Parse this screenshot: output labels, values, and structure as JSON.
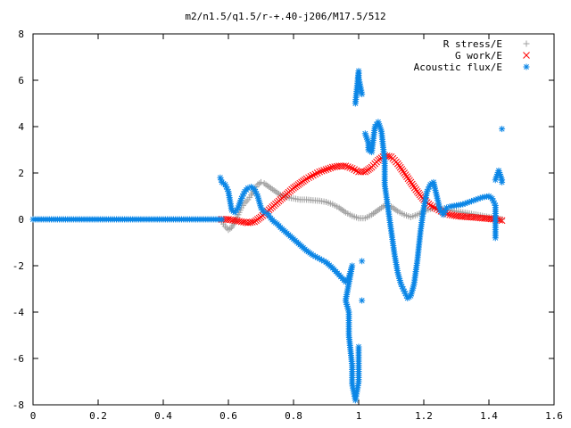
{
  "chart_data": {
    "type": "scatter",
    "title": "m2/n1.5/q1.5/r-+.40-j206/M17.5/512",
    "xlabel": "",
    "ylabel": "",
    "xlim": [
      0,
      1.6
    ],
    "ylim": [
      -8,
      8
    ],
    "xticks": [
      "0",
      "0.2",
      "0.4",
      "0.6",
      "0.8",
      "1",
      "1.2",
      "1.4",
      "1.6"
    ],
    "yticks": [
      "-8",
      "-6",
      "-4",
      "-2",
      "0",
      "2",
      "4",
      "6",
      "8"
    ],
    "grid": false,
    "legend_position": "top-right",
    "series": [
      {
        "name": "R stress/E",
        "marker": "plus",
        "color": "#a0a0a0",
        "points": [
          [
            0.58,
            -0.1
          ],
          [
            0.59,
            -0.3
          ],
          [
            0.6,
            -0.45
          ],
          [
            0.61,
            -0.35
          ],
          [
            0.62,
            -0.1
          ],
          [
            0.63,
            0.2
          ],
          [
            0.64,
            0.5
          ],
          [
            0.65,
            0.7
          ],
          [
            0.66,
            0.85
          ],
          [
            0.67,
            1.05
          ],
          [
            0.68,
            1.3
          ],
          [
            0.69,
            1.5
          ],
          [
            0.7,
            1.6
          ],
          [
            0.71,
            1.55
          ],
          [
            0.72,
            1.45
          ],
          [
            0.73,
            1.35
          ],
          [
            0.74,
            1.25
          ],
          [
            0.75,
            1.15
          ],
          [
            0.76,
            1.05
          ],
          [
            0.78,
            0.95
          ],
          [
            0.8,
            0.9
          ],
          [
            0.82,
            0.85
          ],
          [
            0.84,
            0.85
          ],
          [
            0.86,
            0.82
          ],
          [
            0.88,
            0.8
          ],
          [
            0.9,
            0.75
          ],
          [
            0.92,
            0.65
          ],
          [
            0.94,
            0.5
          ],
          [
            0.96,
            0.3
          ],
          [
            0.98,
            0.15
          ],
          [
            1.0,
            0.05
          ],
          [
            1.02,
            0.05
          ],
          [
            1.04,
            0.2
          ],
          [
            1.06,
            0.4
          ],
          [
            1.08,
            0.6
          ],
          [
            1.1,
            0.55
          ],
          [
            1.12,
            0.35
          ],
          [
            1.14,
            0.2
          ],
          [
            1.16,
            0.1
          ],
          [
            1.18,
            0.2
          ],
          [
            1.2,
            0.35
          ],
          [
            1.22,
            0.45
          ],
          [
            1.24,
            0.5
          ],
          [
            1.26,
            0.45
          ],
          [
            1.28,
            0.4
          ],
          [
            1.3,
            0.35
          ],
          [
            1.32,
            0.3
          ],
          [
            1.34,
            0.25
          ],
          [
            1.36,
            0.2
          ],
          [
            1.38,
            0.15
          ],
          [
            1.4,
            0.1
          ],
          [
            1.42,
            0.05
          ],
          [
            1.44,
            0.0
          ]
        ]
      },
      {
        "name": "G work/E",
        "marker": "cross",
        "color": "#ff0000",
        "points": [
          [
            0.58,
            0.0
          ],
          [
            0.6,
            0.0
          ],
          [
            0.62,
            -0.05
          ],
          [
            0.64,
            -0.1
          ],
          [
            0.66,
            -0.15
          ],
          [
            0.68,
            -0.1
          ],
          [
            0.7,
            0.1
          ],
          [
            0.72,
            0.35
          ],
          [
            0.74,
            0.6
          ],
          [
            0.76,
            0.85
          ],
          [
            0.78,
            1.1
          ],
          [
            0.8,
            1.35
          ],
          [
            0.82,
            1.55
          ],
          [
            0.84,
            1.75
          ],
          [
            0.86,
            1.9
          ],
          [
            0.88,
            2.05
          ],
          [
            0.9,
            2.15
          ],
          [
            0.92,
            2.25
          ],
          [
            0.94,
            2.3
          ],
          [
            0.96,
            2.3
          ],
          [
            0.98,
            2.2
          ],
          [
            1.0,
            2.05
          ],
          [
            1.02,
            2.05
          ],
          [
            1.04,
            2.25
          ],
          [
            1.06,
            2.55
          ],
          [
            1.08,
            2.75
          ],
          [
            1.1,
            2.7
          ],
          [
            1.12,
            2.4
          ],
          [
            1.14,
            2.0
          ],
          [
            1.16,
            1.6
          ],
          [
            1.18,
            1.2
          ],
          [
            1.2,
            0.85
          ],
          [
            1.22,
            0.6
          ],
          [
            1.24,
            0.45
          ],
          [
            1.26,
            0.3
          ],
          [
            1.28,
            0.2
          ],
          [
            1.3,
            0.15
          ],
          [
            1.32,
            0.12
          ],
          [
            1.34,
            0.1
          ],
          [
            1.36,
            0.08
          ],
          [
            1.38,
            0.05
          ],
          [
            1.4,
            0.03
          ],
          [
            1.42,
            0.0
          ],
          [
            1.44,
            -0.05
          ]
        ]
      },
      {
        "name": "Acoustic flux/E",
        "marker": "star",
        "color": "#0b86e6",
        "points": [
          [
            0.0,
            0.0
          ],
          [
            0.1,
            0.0
          ],
          [
            0.2,
            0.0
          ],
          [
            0.3,
            0.0
          ],
          [
            0.4,
            0.0
          ],
          [
            0.5,
            0.0
          ],
          [
            0.58,
            0.0
          ],
          [
            0.575,
            1.8
          ],
          [
            0.58,
            1.6
          ],
          [
            0.59,
            1.5
          ],
          [
            0.6,
            1.2
          ],
          [
            0.61,
            0.4
          ],
          [
            0.62,
            0.3
          ],
          [
            0.63,
            0.5
          ],
          [
            0.64,
            0.9
          ],
          [
            0.65,
            1.2
          ],
          [
            0.66,
            1.35
          ],
          [
            0.67,
            1.4
          ],
          [
            0.68,
            1.3
          ],
          [
            0.69,
            1.0
          ],
          [
            0.7,
            0.5
          ],
          [
            0.71,
            0.3
          ],
          [
            0.72,
            0.25
          ],
          [
            0.73,
            0.05
          ],
          [
            0.74,
            -0.1
          ],
          [
            0.75,
            -0.2
          ],
          [
            0.76,
            -0.35
          ],
          [
            0.78,
            -0.6
          ],
          [
            0.8,
            -0.85
          ],
          [
            0.82,
            -1.1
          ],
          [
            0.84,
            -1.35
          ],
          [
            0.86,
            -1.55
          ],
          [
            0.88,
            -1.7
          ],
          [
            0.9,
            -1.85
          ],
          [
            0.92,
            -2.1
          ],
          [
            0.94,
            -2.4
          ],
          [
            0.96,
            -2.7
          ],
          [
            0.97,
            -2.5
          ],
          [
            0.98,
            -2.0
          ],
          [
            0.96,
            -3.5
          ],
          [
            0.97,
            -4.0
          ],
          [
            0.97,
            -5.0
          ],
          [
            0.98,
            -6.3
          ],
          [
            0.98,
            -7.1
          ],
          [
            0.99,
            -7.8
          ],
          [
            1.0,
            -7.0
          ],
          [
            1.0,
            -5.5
          ],
          [
            1.01,
            -3.5
          ],
          [
            1.01,
            -1.8
          ],
          [
            0.99,
            5.0
          ],
          [
            1.0,
            6.4
          ],
          [
            1.0,
            6.1
          ],
          [
            1.01,
            5.4
          ],
          [
            1.02,
            3.7
          ],
          [
            1.03,
            3.3
          ],
          [
            1.03,
            3.0
          ],
          [
            1.04,
            2.9
          ],
          [
            1.05,
            4.0
          ],
          [
            1.06,
            4.2
          ],
          [
            1.07,
            3.8
          ],
          [
            1.08,
            2.5
          ],
          [
            1.08,
            1.5
          ],
          [
            1.09,
            0.5
          ],
          [
            1.1,
            -0.5
          ],
          [
            1.11,
            -1.5
          ],
          [
            1.12,
            -2.3
          ],
          [
            1.13,
            -2.8
          ],
          [
            1.14,
            -3.1
          ],
          [
            1.15,
            -3.4
          ],
          [
            1.16,
            -3.3
          ],
          [
            1.17,
            -2.8
          ],
          [
            1.18,
            -1.8
          ],
          [
            1.19,
            -0.5
          ],
          [
            1.2,
            0.5
          ],
          [
            1.21,
            1.2
          ],
          [
            1.22,
            1.5
          ],
          [
            1.23,
            1.6
          ],
          [
            1.24,
            1.0
          ],
          [
            1.25,
            0.4
          ],
          [
            1.26,
            0.2
          ],
          [
            1.27,
            0.5
          ],
          [
            1.28,
            0.55
          ],
          [
            1.3,
            0.6
          ],
          [
            1.32,
            0.65
          ],
          [
            1.34,
            0.75
          ],
          [
            1.36,
            0.85
          ],
          [
            1.38,
            0.95
          ],
          [
            1.4,
            1.0
          ],
          [
            1.41,
            0.9
          ],
          [
            1.42,
            0.6
          ],
          [
            1.42,
            -0.8
          ],
          [
            1.42,
            1.7
          ],
          [
            1.43,
            2.1
          ],
          [
            1.44,
            1.7
          ],
          [
            1.44,
            3.9
          ],
          [
            1.44,
            1.6
          ]
        ]
      }
    ]
  }
}
